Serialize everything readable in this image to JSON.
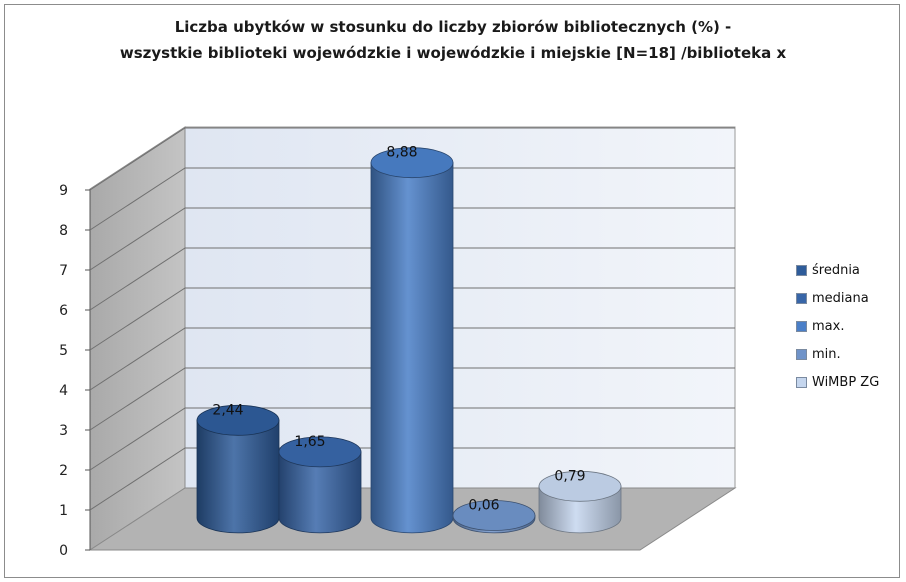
{
  "chart_data": {
    "type": "bar",
    "title_line1": "Liczba ubytków w stosunku do liczby zbiorów bibliotecznych (%) -",
    "title_line2": "wszystkie biblioteki wojewódzkie i wojewódzkie i miejskie  [N=18] /biblioteka x",
    "xlabel": "",
    "ylabel": "",
    "ylim": [
      0,
      9
    ],
    "y_ticks": [
      "0",
      "1",
      "2",
      "3",
      "4",
      "5",
      "6",
      "7",
      "8",
      "9"
    ],
    "grid": true,
    "legend_position": "right",
    "three_d": true,
    "shape": "cylinder",
    "series": [
      {
        "name": "średnia",
        "value": 2.44,
        "label": "2,44",
        "color": "#2e5c9a"
      },
      {
        "name": "mediana",
        "value": 1.65,
        "label": "1,65",
        "color": "#3866a8"
      },
      {
        "name": "max.",
        "value": 8.88,
        "label": "8,88",
        "color": "#4a7fc8"
      },
      {
        "name": "min.",
        "value": 0.06,
        "label": "0,06",
        "color": "#6f93c9"
      },
      {
        "name": "WiMBP ZG",
        "value": 0.79,
        "label": "0,79",
        "color": "#c5d6ee"
      }
    ]
  }
}
